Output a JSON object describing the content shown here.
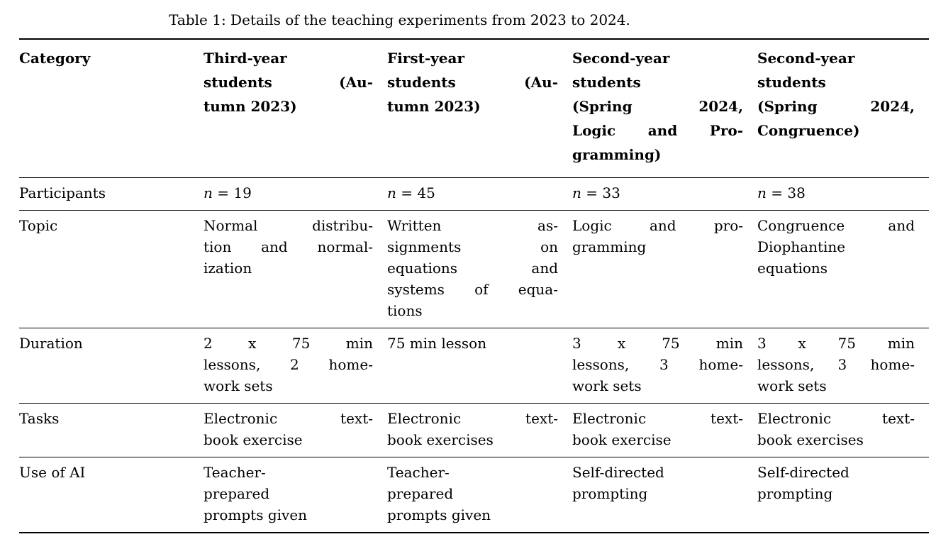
{
  "caption": "Table 1: Details of the teaching experiments from 2023 to 2024.",
  "table": {
    "header": {
      "category": "Category",
      "cols": [
        "Third-year\nstudents (Au-\ntumn 2023)",
        "First-year\nstudents (Au-\ntumn 2023)",
        "Second-year\nstudents\n(Spring 2024,\nLogic and Pro-\ngramming)",
        "Second-year\nstudents\n(Spring 2024,\nCongruence)"
      ]
    },
    "rows": [
      {
        "label": "Participants",
        "cells": [
          "n = 19",
          "n = 45",
          "n = 33",
          "n = 38"
        ]
      },
      {
        "label": "Topic",
        "cells": [
          "Normal distribu-\ntion and normal-\nization",
          "Written as-\nsignments on\nequations and\nsystems of equa-\ntions",
          "Logic and pro-\ngramming",
          "Congruence and\nDiophantine\nequations"
        ]
      },
      {
        "label": "Duration",
        "cells": [
          "2 x 75 min\nlessons, 2 home-\nwork sets",
          "75 min lesson",
          "3 x 75 min\nlessons, 3 home-\nwork sets",
          "3 x 75 min\nlessons, 3 home-\nwork sets"
        ]
      },
      {
        "label": "Tasks",
        "cells": [
          "Electronic text-\nbook exercise",
          "Electronic text-\nbook exercises",
          "Electronic text-\nbook exercise",
          "Electronic text-\nbook exercises"
        ]
      },
      {
        "label": "Use of AI",
        "cells": [
          "Teacher-\nprepared\nprompts given",
          "Teacher-\nprepared\nprompts given",
          "Self-directed\nprompting",
          "Self-directed\nprompting"
        ]
      }
    ]
  }
}
